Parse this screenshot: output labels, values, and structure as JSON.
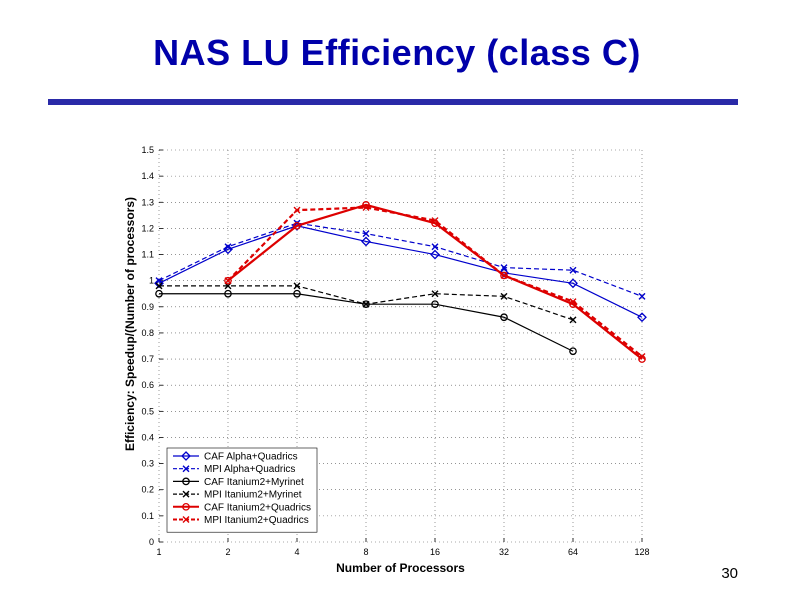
{
  "slide": {
    "title": "NAS LU Efficiency (class C)",
    "page_number": "30"
  },
  "chart_data": {
    "type": "line",
    "title": "",
    "xlabel": "Number of Processors",
    "ylabel": "Efficiency: Speedup/(Number of processors)",
    "x_scale": "log2",
    "categories": [
      "1",
      "2",
      "4",
      "8",
      "16",
      "32",
      "64",
      "128"
    ],
    "x": [
      1,
      2,
      4,
      8,
      16,
      32,
      64,
      128
    ],
    "ylim": [
      0,
      1.5
    ],
    "yticks": [
      "0",
      "0.1",
      "0.2",
      "0.3",
      "0.4",
      "0.5",
      "0.6",
      "0.7",
      "0.8",
      "0.9",
      "1",
      "1.1",
      "1.2",
      "1.3",
      "1.4",
      "1.5"
    ],
    "grid": "dotted",
    "legend_position": "bottom-left",
    "series": [
      {
        "name": "CAF Alpha+Quadrics",
        "color": "#0000cc",
        "dash": "solid",
        "marker": "diamond",
        "values": [
          0.99,
          1.12,
          1.21,
          1.15,
          1.1,
          1.03,
          0.99,
          0.86
        ]
      },
      {
        "name": "MPI Alpha+Quadrics",
        "color": "#0000cc",
        "dash": "dashed",
        "marker": "x",
        "values": [
          1.0,
          1.13,
          1.22,
          1.18,
          1.13,
          1.05,
          1.04,
          0.94
        ]
      },
      {
        "name": "CAF Itanium2+Myrinet",
        "color": "#000000",
        "dash": "solid",
        "marker": "circle",
        "values": [
          0.95,
          0.95,
          0.95,
          0.91,
          0.91,
          0.86,
          0.73,
          null
        ]
      },
      {
        "name": "MPI Itanium2+Myrinet",
        "color": "#000000",
        "dash": "dashed",
        "marker": "x",
        "values": [
          0.98,
          0.98,
          0.98,
          0.91,
          0.95,
          0.94,
          0.85,
          null
        ]
      },
      {
        "name": "CAF Itanium2+Quadrics",
        "color": "#dd0000",
        "dash": "solid",
        "marker": "circle",
        "values": [
          null,
          1.0,
          1.21,
          1.29,
          1.22,
          1.02,
          0.91,
          0.7
        ]
      },
      {
        "name": "MPI Itanium2+Quadrics",
        "color": "#dd0000",
        "dash": "dashed",
        "marker": "x",
        "values": [
          null,
          1.0,
          1.27,
          1.28,
          1.23,
          1.02,
          0.92,
          0.71
        ]
      }
    ]
  }
}
